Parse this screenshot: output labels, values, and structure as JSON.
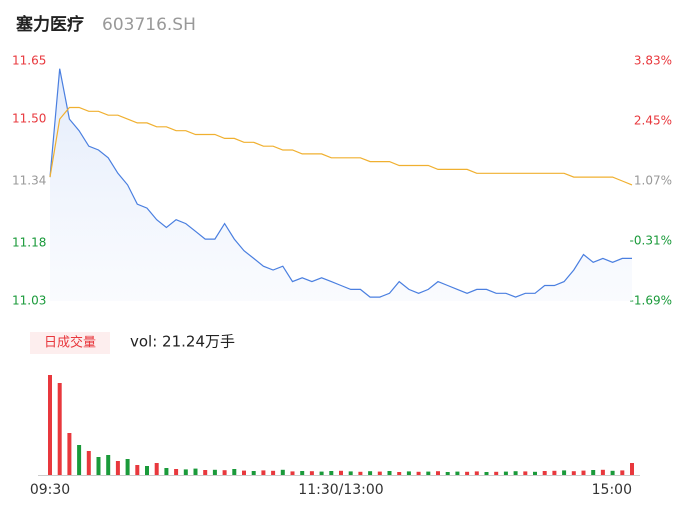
{
  "chart_data": [
    {
      "type": "line",
      "title": "塞力医疗",
      "subtitle": "603716.SH",
      "x": [
        0,
        4,
        8,
        12,
        16,
        20,
        24,
        28,
        32,
        36,
        40,
        44,
        48,
        52,
        56,
        60,
        64,
        68,
        72,
        76,
        80,
        84,
        88,
        92,
        96,
        100,
        104,
        108,
        112,
        116,
        120,
        124,
        128,
        132,
        136,
        140,
        144,
        148,
        152,
        156,
        160,
        164,
        168,
        172,
        176,
        180,
        184,
        188,
        192,
        196,
        200,
        204,
        208,
        212,
        216,
        220,
        224,
        228,
        232,
        236,
        240
      ],
      "xlim": [
        0,
        240
      ],
      "ylim": [
        11.03,
        11.65
      ],
      "yticks": [
        11.65,
        {
          "value": 11.5,
          "label": "11.50"
        },
        11.34,
        11.18,
        11.03
      ],
      "ytick_colors": [
        "#e8383d",
        "#e8383d",
        "#999999",
        "#1a9a3a",
        "#1a9a3a"
      ],
      "y2lim": [
        -1.69,
        3.83
      ],
      "y2ticks": [
        {
          "value": 3.83,
          "label": "3.83%"
        },
        {
          "value": 2.45,
          "label": "2.45%"
        },
        {
          "value": 1.07,
          "label": "1.07%"
        },
        {
          "value": -0.31,
          "label": "-0.31%"
        },
        {
          "value": -1.69,
          "label": "-1.69%"
        }
      ],
      "series": [
        {
          "name": "price",
          "color": "#4a7fe0",
          "values": [
            11.35,
            11.63,
            11.5,
            11.47,
            11.43,
            11.42,
            11.4,
            11.36,
            11.33,
            11.28,
            11.27,
            11.24,
            11.22,
            11.24,
            11.23,
            11.21,
            11.19,
            11.19,
            11.23,
            11.19,
            11.16,
            11.14,
            11.12,
            11.11,
            11.12,
            11.08,
            11.09,
            11.08,
            11.09,
            11.08,
            11.07,
            11.06,
            11.06,
            11.04,
            11.04,
            11.05,
            11.08,
            11.06,
            11.05,
            11.06,
            11.08,
            11.07,
            11.06,
            11.05,
            11.06,
            11.06,
            11.05,
            11.05,
            11.04,
            11.05,
            11.05,
            11.07,
            11.07,
            11.08,
            11.11,
            11.15,
            11.13,
            11.14,
            11.13,
            11.14,
            11.14
          ]
        },
        {
          "name": "average",
          "color": "#f0b030",
          "values": [
            11.35,
            11.5,
            11.53,
            11.53,
            11.52,
            11.52,
            11.51,
            11.51,
            11.5,
            11.49,
            11.49,
            11.48,
            11.48,
            11.47,
            11.47,
            11.46,
            11.46,
            11.46,
            11.45,
            11.45,
            11.44,
            11.44,
            11.43,
            11.43,
            11.42,
            11.42,
            11.41,
            11.41,
            11.41,
            11.4,
            11.4,
            11.4,
            11.4,
            11.39,
            11.39,
            11.39,
            11.38,
            11.38,
            11.38,
            11.38,
            11.37,
            11.37,
            11.37,
            11.37,
            11.36,
            11.36,
            11.36,
            11.36,
            11.36,
            11.36,
            11.36,
            11.36,
            11.36,
            11.36,
            11.35,
            11.35,
            11.35,
            11.35,
            11.35,
            11.34,
            11.33
          ]
        }
      ]
    },
    {
      "type": "bar",
      "title": "日成交量",
      "subtitle": "vol: 21.24万手",
      "x": [
        0,
        4,
        8,
        12,
        16,
        20,
        24,
        28,
        32,
        36,
        40,
        44,
        48,
        52,
        56,
        60,
        64,
        68,
        72,
        76,
        80,
        84,
        88,
        92,
        96,
        100,
        104,
        108,
        112,
        116,
        120,
        124,
        128,
        132,
        136,
        140,
        144,
        148,
        152,
        156,
        160,
        164,
        168,
        172,
        176,
        180,
        184,
        188,
        192,
        196,
        200,
        204,
        208,
        212,
        216,
        220,
        224,
        228,
        232,
        236,
        240
      ],
      "xlim": [
        0,
        240
      ],
      "ylim": [
        0,
        5500
      ],
      "xticks": [
        {
          "value": 0,
          "label": "09:30"
        },
        {
          "value": 120,
          "label": "11:30/13:00"
        },
        {
          "value": 240,
          "label": "15:00"
        }
      ],
      "values": [
        5000,
        4600,
        2100,
        1500,
        1200,
        900,
        1000,
        700,
        800,
        500,
        450,
        600,
        350,
        300,
        280,
        320,
        250,
        260,
        240,
        300,
        220,
        200,
        230,
        210,
        260,
        180,
        200,
        190,
        170,
        200,
        210,
        180,
        160,
        190,
        170,
        200,
        150,
        180,
        160,
        170,
        190,
        150,
        170,
        160,
        180,
        150,
        160,
        170,
        190,
        180,
        160,
        200,
        210,
        230,
        190,
        220,
        250,
        260,
        210,
        230,
        600
      ],
      "colors": [
        "#e8383d",
        "#e8383d",
        "#e8383d",
        "#1a9a3a",
        "#e8383d",
        "#1a9a3a",
        "#1a9a3a",
        "#e8383d",
        "#1a9a3a",
        "#e8383d",
        "#1a9a3a",
        "#e8383d",
        "#1a9a3a",
        "#e8383d",
        "#1a9a3a",
        "#1a9a3a",
        "#e8383d",
        "#1a9a3a",
        "#e8383d",
        "#1a9a3a",
        "#e8383d",
        "#1a9a3a",
        "#e8383d",
        "#e8383d",
        "#1a9a3a",
        "#e8383d",
        "#1a9a3a",
        "#e8383d",
        "#1a9a3a",
        "#1a9a3a",
        "#e8383d",
        "#1a9a3a",
        "#e8383d",
        "#1a9a3a",
        "#e8383d",
        "#1a9a3a",
        "#e8383d",
        "#1a9a3a",
        "#e8383d",
        "#1a9a3a",
        "#e8383d",
        "#1a9a3a",
        "#1a9a3a",
        "#e8383d",
        "#e8383d",
        "#1a9a3a",
        "#e8383d",
        "#1a9a3a",
        "#1a9a3a",
        "#e8383d",
        "#1a9a3a",
        "#e8383d",
        "#e8383d",
        "#1a9a3a",
        "#e8383d",
        "#e8383d",
        "#1a9a3a",
        "#e8383d",
        "#1a9a3a",
        "#e8383d",
        "#e8383d"
      ]
    }
  ]
}
